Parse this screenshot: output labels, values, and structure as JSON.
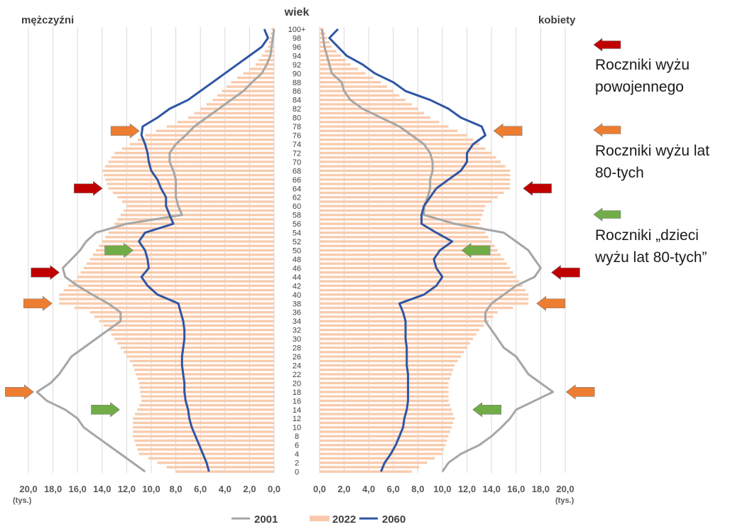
{
  "labels": {
    "men": "mężczyźni",
    "age": "wiek",
    "women": "kobiety",
    "unit": "(tys.)"
  },
  "annotations": [
    {
      "text": "Roczniki wyżu\npowojennego",
      "color": "#c00000"
    },
    {
      "text": "Roczniki wyżu lat\n80-tych",
      "color": "#ed7d31"
    },
    {
      "text": "Roczniki „dzieci\nwyżu lat 80-tych”",
      "color": "#70ad47"
    }
  ],
  "chart_data": {
    "type": "population-pyramid",
    "x_ticks": [
      "20,0",
      "18,0",
      "16,0",
      "14,0",
      "12,0",
      "10,0",
      "8,0",
      "6,0",
      "4,0",
      "2,0",
      "0,0"
    ],
    "x_ticks_right": [
      "0,0",
      "2,0",
      "4,0",
      "6,0",
      "8,0",
      "10,0",
      "12,0",
      "14,0",
      "16,0",
      "18,0",
      "20,0"
    ],
    "xlim": [
      0,
      20
    ],
    "age_labels": [
      "0",
      "2",
      "4",
      "6",
      "8",
      "10",
      "12",
      "14",
      "16",
      "18",
      "20",
      "22",
      "24",
      "26",
      "28",
      "30",
      "32",
      "34",
      "36",
      "38",
      "40",
      "42",
      "44",
      "46",
      "48",
      "50",
      "52",
      "54",
      "56",
      "58",
      "60",
      "62",
      "64",
      "66",
      "68",
      "70",
      "72",
      "74",
      "76",
      "78",
      "80",
      "82",
      "84",
      "86",
      "88",
      "90",
      "92",
      "94",
      "96",
      "98",
      "100+"
    ],
    "grid": true,
    "legend_position": "bottom",
    "legend": [
      "2001",
      "2022",
      "2060"
    ],
    "series_colors": {
      "2001": "#a6a6a6",
      "2022": "#f8cbad",
      "2060": "#2f55a4"
    },
    "series": [
      {
        "name": "2001",
        "men_ages": [
          0,
          2,
          4,
          6,
          8,
          10,
          12,
          14,
          16,
          18,
          20,
          22,
          24,
          26,
          28,
          30,
          32,
          34,
          36,
          38,
          40,
          42,
          44,
          46,
          48,
          50,
          52,
          54,
          56,
          58,
          60,
          62,
          64,
          66,
          68,
          70,
          72,
          74,
          76,
          78,
          80,
          82,
          84,
          86,
          88,
          90,
          92,
          94,
          96,
          98,
          100
        ],
        "men": [
          10.5,
          11.5,
          12.5,
          13.5,
          14.5,
          15.5,
          16,
          17,
          18.5,
          19.3,
          18.2,
          17.5,
          17,
          16.5,
          15.5,
          14.5,
          13.5,
          12.5,
          12.5,
          13.5,
          14.8,
          16,
          17,
          17.2,
          16.5,
          15.8,
          15.3,
          14.5,
          12,
          7.5,
          7.8,
          8,
          8,
          8,
          8.2,
          8.5,
          8.5,
          8,
          7.2,
          6.5,
          5.5,
          4.5,
          3.5,
          2.5,
          1.8,
          1,
          0.6,
          0.3,
          0.2,
          0.1,
          0
        ],
        "women_ages": [
          0,
          2,
          4,
          6,
          8,
          10,
          12,
          14,
          16,
          18,
          20,
          22,
          24,
          26,
          28,
          30,
          32,
          34,
          36,
          38,
          40,
          42,
          44,
          46,
          48,
          50,
          52,
          54,
          56,
          58,
          60,
          62,
          64,
          66,
          68,
          70,
          72,
          74,
          76,
          78,
          80,
          82,
          84,
          86,
          88,
          90,
          92,
          94,
          96,
          98,
          100
        ],
        "women": [
          10,
          10.5,
          11.5,
          13,
          14,
          14.8,
          15.5,
          16,
          17.5,
          19,
          18,
          17,
          16.5,
          16,
          15,
          14.5,
          14,
          13.5,
          13.5,
          14,
          15,
          16,
          17.5,
          18,
          17.5,
          17,
          16,
          15,
          11,
          8.5,
          8.5,
          8.8,
          9,
          9,
          9.2,
          9.2,
          9,
          8.5,
          7.5,
          6.5,
          5,
          3.5,
          2.5,
          2,
          1.8,
          1,
          0.8,
          0.6,
          0.4,
          0.3,
          0.2
        ]
      },
      {
        "name": "2022",
        "men_ages": [
          0,
          4,
          8,
          12,
          16,
          20,
          24,
          28,
          32,
          36,
          38,
          40,
          44,
          48,
          52,
          56,
          60,
          64,
          68,
          72,
          76,
          80,
          84,
          88,
          92,
          96,
          100
        ],
        "men": [
          8,
          11,
          11.5,
          11.5,
          10.8,
          11,
          11.5,
          12.5,
          13.5,
          15,
          17.5,
          17.5,
          16,
          15,
          14,
          13,
          12,
          13.5,
          14,
          13,
          10.5,
          7,
          5,
          3.5,
          1.5,
          0.5,
          0.2
        ],
        "women_ages": [
          0,
          4,
          8,
          12,
          16,
          20,
          24,
          28,
          32,
          36,
          38,
          40,
          44,
          48,
          52,
          56,
          60,
          64,
          68,
          72,
          76,
          80,
          84,
          88,
          92,
          96,
          100
        ],
        "women": [
          7.5,
          10,
          10.5,
          11,
          10.5,
          10.5,
          11,
          12,
          13,
          14.5,
          17,
          17,
          16,
          15,
          14,
          13,
          13.5,
          15.5,
          15.5,
          14,
          12,
          9,
          7,
          5,
          2.5,
          1,
          0.3
        ]
      },
      {
        "name": "2060",
        "men_ages": [
          0,
          2,
          4,
          6,
          8,
          10,
          12,
          14,
          16,
          18,
          20,
          22,
          24,
          26,
          28,
          30,
          32,
          34,
          36,
          38,
          40,
          42,
          44,
          46,
          48,
          50,
          52,
          54,
          56,
          58,
          60,
          62,
          64,
          66,
          68,
          70,
          72,
          74,
          76,
          78,
          80,
          82,
          84,
          86,
          88,
          90,
          92,
          94,
          96,
          98,
          100
        ],
        "men": [
          5.3,
          5.5,
          5.8,
          6.1,
          6.4,
          6.7,
          6.9,
          7,
          7.2,
          7.3,
          7.3,
          7.4,
          7.5,
          7.5,
          7.4,
          7.3,
          7.3,
          7.4,
          7.6,
          7.8,
          9.5,
          10.3,
          10.8,
          10.2,
          10.3,
          10.5,
          11,
          10.5,
          8.2,
          8.5,
          8.8,
          8.8,
          9.2,
          9.5,
          10,
          10.2,
          10.3,
          10.5,
          10.8,
          10.7,
          9.5,
          8.5,
          7,
          6,
          5,
          4,
          3,
          2,
          1,
          0.5,
          0.8
        ],
        "women_ages": [
          0,
          2,
          4,
          6,
          8,
          10,
          12,
          14,
          16,
          18,
          20,
          22,
          24,
          26,
          28,
          30,
          32,
          34,
          36,
          38,
          40,
          42,
          44,
          46,
          48,
          50,
          52,
          54,
          56,
          58,
          60,
          62,
          64,
          66,
          68,
          70,
          72,
          74,
          76,
          78,
          80,
          82,
          84,
          86,
          88,
          90,
          92,
          94,
          96,
          98,
          100
        ],
        "women": [
          5,
          5.3,
          5.8,
          6.2,
          6.5,
          6.8,
          6.9,
          7.1,
          7.2,
          7.2,
          7.2,
          7.2,
          7.1,
          7.1,
          7.1,
          7,
          7,
          7,
          6.8,
          6.5,
          8.5,
          9.5,
          10,
          9.5,
          9.3,
          9.8,
          10.8,
          9.5,
          8.3,
          8.3,
          8.5,
          9,
          9.5,
          10.5,
          11.5,
          12,
          12,
          12.5,
          13.5,
          13.2,
          11.5,
          10.5,
          9,
          7,
          6,
          4.5,
          3.5,
          2.2,
          1.5,
          0.8,
          1.5
        ]
      }
    ]
  },
  "arrows": [
    {
      "side": "left",
      "age": 77,
      "value": 10.8,
      "color": "#ed7d31"
    },
    {
      "side": "left",
      "age": 64,
      "value": 13.8,
      "color": "#c00000"
    },
    {
      "side": "left",
      "age": 50,
      "value": 11.3,
      "color": "#70ad47"
    },
    {
      "side": "left",
      "age": 45,
      "value": 17.3,
      "color": "#c00000"
    },
    {
      "side": "left",
      "age": 38,
      "value": 17.9,
      "color": "#ed7d31"
    },
    {
      "side": "left",
      "age": 18,
      "value": 19.4,
      "color": "#ed7d31"
    },
    {
      "side": "left",
      "age": 14,
      "value": 12.4,
      "color": "#70ad47"
    },
    {
      "side": "right",
      "age": 77,
      "value": 14,
      "color": "#ed7d31"
    },
    {
      "side": "right",
      "age": 64,
      "value": 16.4,
      "color": "#c00000"
    },
    {
      "side": "right",
      "age": 50,
      "value": 11.4,
      "color": "#70ad47"
    },
    {
      "side": "right",
      "age": 45,
      "value": 18.7,
      "color": "#c00000"
    },
    {
      "side": "right",
      "age": 38,
      "value": 17.5,
      "color": "#ed7d31"
    },
    {
      "side": "right",
      "age": 18,
      "value": 19.9,
      "color": "#ed7d31"
    },
    {
      "side": "right",
      "age": 14,
      "value": 12.3,
      "color": "#70ad47"
    }
  ]
}
